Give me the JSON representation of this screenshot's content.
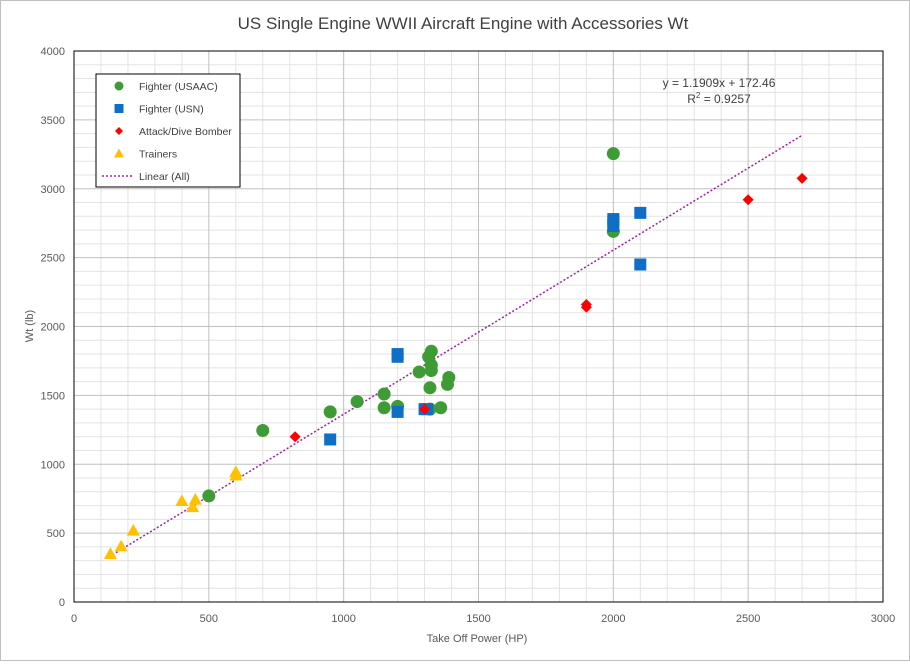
{
  "chart_data": {
    "type": "scatter",
    "title": "US Single Engine WWII Aircraft Engine with Accessories Wt",
    "xlabel": "Take Off Power (HP)",
    "ylabel": "Wt (lb)",
    "xlim": [
      0,
      3000
    ],
    "ylim": [
      0,
      4000
    ],
    "x_ticks": [
      0,
      500,
      1000,
      1500,
      2000,
      2500,
      3000
    ],
    "y_ticks": [
      0,
      500,
      1000,
      1500,
      2000,
      2500,
      3000,
      3500,
      4000
    ],
    "x_minor_step": 100,
    "y_minor_step": 100,
    "grid": true,
    "legend_position": "top-left",
    "series": [
      {
        "name": "Fighter (USAAC)",
        "marker": "circle",
        "color": "#3f9b35",
        "points": [
          [
            500,
            770
          ],
          [
            700,
            1245
          ],
          [
            950,
            1380
          ],
          [
            1050,
            1455
          ],
          [
            1150,
            1410
          ],
          [
            1150,
            1510
          ],
          [
            1200,
            1420
          ],
          [
            1280,
            1670
          ],
          [
            1315,
            1780
          ],
          [
            1325,
            1820
          ],
          [
            1325,
            1720
          ],
          [
            1325,
            1680
          ],
          [
            1320,
            1555
          ],
          [
            1320,
            1400
          ],
          [
            1360,
            1410
          ],
          [
            1385,
            1580
          ],
          [
            1390,
            1630
          ],
          [
            2000,
            3255
          ],
          [
            2000,
            2690
          ]
        ]
      },
      {
        "name": "Fighter (USN)",
        "marker": "square",
        "color": "#0f6fc6",
        "points": [
          [
            950,
            1180
          ],
          [
            1200,
            1800
          ],
          [
            1200,
            1780
          ],
          [
            1200,
            1380
          ],
          [
            1300,
            1400
          ],
          [
            1310,
            1400
          ],
          [
            2000,
            2780
          ],
          [
            2000,
            2760
          ],
          [
            2000,
            2730
          ],
          [
            2100,
            2825
          ],
          [
            2100,
            2450
          ]
        ]
      },
      {
        "name": "Attack/Dive Bomber",
        "marker": "diamond",
        "color": "#ff0000",
        "points": [
          [
            820,
            1200
          ],
          [
            1300,
            1400
          ],
          [
            1900,
            2160
          ],
          [
            1900,
            2140
          ],
          [
            2500,
            2920
          ],
          [
            2700,
            3075
          ]
        ]
      },
      {
        "name": "Trainers",
        "marker": "triangle",
        "color": "#ffc000",
        "points": [
          [
            135,
            350
          ],
          [
            175,
            405
          ],
          [
            220,
            520
          ],
          [
            400,
            735
          ],
          [
            440,
            690
          ],
          [
            450,
            745
          ],
          [
            600,
            945
          ],
          [
            600,
            920
          ]
        ]
      }
    ],
    "trendline": {
      "name": "Linear (All)",
      "color": "#a020a0",
      "style": "dotted",
      "slope": 1.1909,
      "intercept": 172.46,
      "x_range": [
        130,
        2700
      ],
      "equation": "y = 1.1909x + 172.46",
      "r2_prefix": "R",
      "r2_sup": "2",
      "r2_value": " = 0.9257"
    }
  }
}
